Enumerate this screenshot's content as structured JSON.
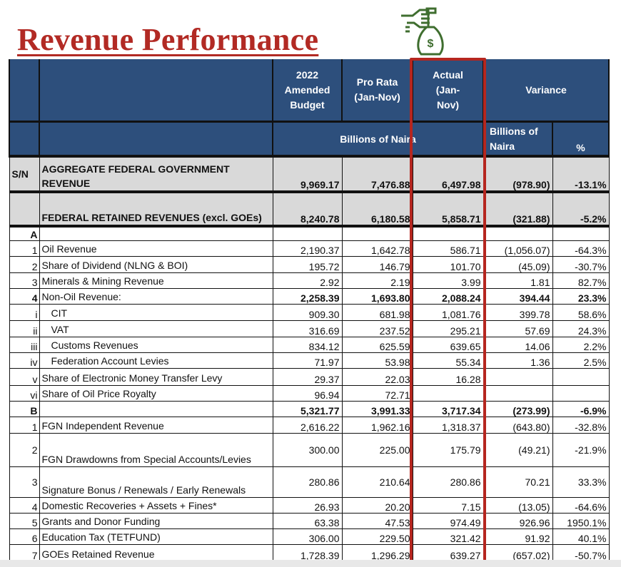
{
  "title": "Revenue Performance",
  "header": {
    "budget": "2022 Amended Budget",
    "pro_rata": "Pro Rata (Jan-Nov)",
    "actual": "Actual (Jan-Nov)",
    "variance": "Variance",
    "units": "Billions of Naira",
    "variance_units": "Billions of Naira",
    "variance_pct": "%"
  },
  "colors": {
    "header_bg": "#2d4f7c",
    "title": "#b22a24",
    "highlight": "#b5261f",
    "icon": "#3f6e2f"
  },
  "rows": [
    {
      "sn": "S/N",
      "desc": "AGGREGATE FEDERAL GOVERNMENT REVENUE",
      "budget": "9,969.17",
      "pro_rata": "7,476.88",
      "actual": "6,497.98",
      "var": "(978.90)",
      "pct": "-13.1%",
      "type": "grey",
      "h": 50
    },
    {
      "sn": "",
      "desc": "FEDERAL RETAINED REVENUES (excl. GOEs)",
      "budget": "8,240.78",
      "pro_rata": "6,180.58",
      "actual": "5,858.71",
      "var": "(321.88)",
      "pct": "-5.2%",
      "type": "grey",
      "h": 48
    },
    {
      "sn": "A",
      "desc": "",
      "budget": "",
      "pro_rata": "",
      "actual": "",
      "var": "",
      "pct": "",
      "type": "bold",
      "h": 20
    },
    {
      "sn": "1",
      "desc": "Oil Revenue",
      "budget": "2,190.37",
      "pro_rata": "1,642.78",
      "actual": "586.71",
      "var": "(1,056.07)",
      "pct": "-64.3%",
      "type": "",
      "h": 22
    },
    {
      "sn": "2",
      "desc": "Share of Dividend (NLNG & BOI)",
      "budget": "195.72",
      "pro_rata": "146.79",
      "actual": "101.70",
      "var": "(45.09)",
      "pct": "-30.7%",
      "type": "",
      "h": 23
    },
    {
      "sn": "3",
      "desc": "Minerals & Mining Revenue",
      "budget": "2.92",
      "pro_rata": "2.19",
      "actual": "3.99",
      "var": "1.81",
      "pct": "82.7%",
      "type": "",
      "h": 22
    },
    {
      "sn": "4",
      "desc": "Non-Oil Revenue:",
      "budget": "2,258.39",
      "pro_rata": "1,693.80",
      "actual": "2,088.24",
      "var": "394.44",
      "pct": "23.3%",
      "type": "boldnum",
      "h": 22
    },
    {
      "sn": "i",
      "desc": "CIT",
      "budget": "909.30",
      "pro_rata": "681.98",
      "actual": "1,081.76",
      "var": "399.78",
      "pct": "58.6%",
      "type": "sub",
      "h": 23
    },
    {
      "sn": "ii",
      "desc": "VAT",
      "budget": "316.69",
      "pro_rata": "237.52",
      "actual": "295.21",
      "var": "57.69",
      "pct": "24.3%",
      "type": "sub",
      "h": 23
    },
    {
      "sn": "iii",
      "desc": "Customs Revenues",
      "budget": "834.12",
      "pro_rata": "625.59",
      "actual": "639.65",
      "var": "14.06",
      "pct": "2.2%",
      "type": "sub",
      "h": 22
    },
    {
      "sn": "iv",
      "desc": "Federation Account Levies",
      "budget": "71.97",
      "pro_rata": "53.98",
      "actual": "55.34",
      "var": "1.36",
      "pct": "2.5%",
      "type": "sub",
      "h": 22
    },
    {
      "sn": "v",
      "desc": "Share of Electronic Money Transfer Levy",
      "budget": "29.37",
      "pro_rata": "22.03",
      "actual": "16.28",
      "var": "",
      "pct": "",
      "type": "",
      "h": 24
    },
    {
      "sn": "vi",
      "desc": "Share of Oil Price Royalty",
      "budget": "96.94",
      "pro_rata": "72.71",
      "actual": "",
      "var": "",
      "pct": "",
      "type": "",
      "h": 22
    },
    {
      "sn": "B",
      "desc": "",
      "budget": "5,321.77",
      "pro_rata": "3,991.33",
      "actual": "3,717.34",
      "var": "(273.99)",
      "pct": "-6.9%",
      "type": "bold",
      "h": 22
    },
    {
      "sn": "1",
      "desc": "FGN Independent Revenue",
      "budget": "2,616.22",
      "pro_rata": "1,962.16",
      "actual": "1,318.37",
      "var": "(643.80)",
      "pct": "-32.8%",
      "type": "",
      "h": 23
    },
    {
      "sn": "2",
      "desc": "FGN Drawdowns from Special Accounts/Levies",
      "budget": "300.00",
      "pro_rata": "225.00",
      "actual": "175.79",
      "var": "(49.21)",
      "pct": "-21.9%",
      "type": "mid",
      "h": 47
    },
    {
      "sn": "3",
      "desc": "Signature Bonus / Renewals / Early Renewals",
      "budget": "280.86",
      "pro_rata": "210.64",
      "actual": "280.86",
      "var": "70.21",
      "pct": "33.3%",
      "type": "mid",
      "h": 43
    },
    {
      "sn": "4",
      "desc": "Domestic Recoveries + Assets + Fines*",
      "budget": "26.93",
      "pro_rata": "20.20",
      "actual": "7.15",
      "var": "(13.05)",
      "pct": "-64.6%",
      "type": "",
      "h": 22
    },
    {
      "sn": "5",
      "desc": "Grants and Donor Funding",
      "budget": "63.38",
      "pro_rata": "47.53",
      "actual": "974.49",
      "var": "926.96",
      "pct": "1950.1%",
      "type": "",
      "h": 22
    },
    {
      "sn": "6",
      "desc": "Education Tax (TETFUND)",
      "budget": "306.00",
      "pro_rata": "229.50",
      "actual": "321.42",
      "var": "91.92",
      "pct": "40.1%",
      "type": "",
      "h": 22
    },
    {
      "sn": "7",
      "desc": "GOEs Retained Revenue",
      "budget": "1,728.39",
      "pro_rata": "1,296.29",
      "actual": "639.27",
      "var": "(657.02)",
      "pct": "-50.7%",
      "type": "",
      "h": 24
    }
  ]
}
